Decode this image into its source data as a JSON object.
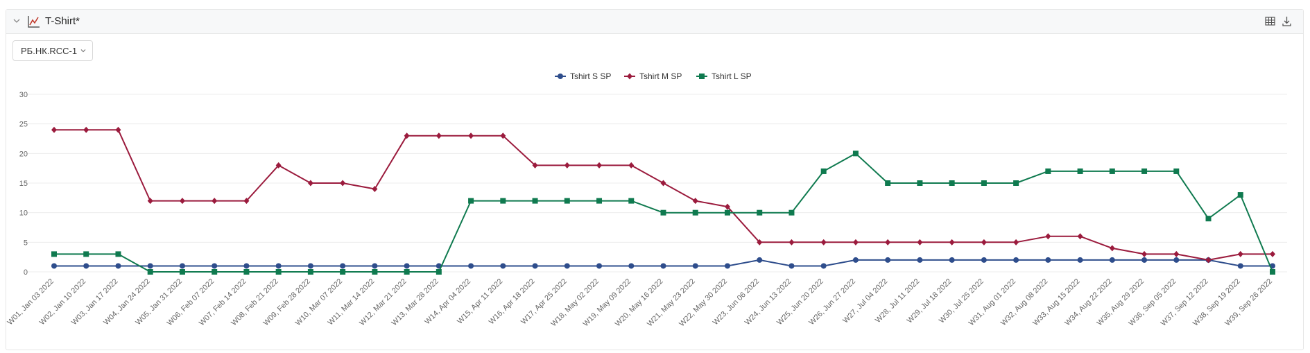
{
  "panel": {
    "title": "T-Shirt*"
  },
  "icons": {
    "collapse": "chevron-down-icon",
    "chart": "line-chart-icon",
    "table": "table-icon",
    "download": "download-icon"
  },
  "selector": {
    "value": "РБ.НК.RCC-1"
  },
  "colors": {
    "s": "#2e4d8c",
    "m": "#9b1b3d",
    "l": "#0f7a4f",
    "grid": "#ececec"
  },
  "chart_data": {
    "type": "line",
    "title": "",
    "xlabel": "",
    "ylabel": "",
    "ylim": [
      0,
      30
    ],
    "yticks": [
      "0",
      "5",
      "10",
      "15",
      "20",
      "25",
      "30"
    ],
    "legend_position": "top-center",
    "grid": true,
    "categories": [
      "W01, Jan 03 2022",
      "W02, Jan 10 2022",
      "W03, Jan 17 2022",
      "W04, Jan 24 2022",
      "W05, Jan 31 2022",
      "W06, Feb 07 2022",
      "W07, Feb 14 2022",
      "W08, Feb 21 2022",
      "W09, Feb 28 2022",
      "W10, Mar 07 2022",
      "W11, Mar 14 2022",
      "W12, Mar 21 2022",
      "W13, Mar 28 2022",
      "W14, Apr 04 2022",
      "W15, Apr 11 2022",
      "W16, Apr 18 2022",
      "W17, Apr 25 2022",
      "W18, May 02 2022",
      "W19, May 09 2022",
      "W20, May 16 2022",
      "W21, May 23 2022",
      "W22, May 30 2022",
      "W23, Jun 06 2022",
      "W24, Jun 13 2022",
      "W25, Jun 20 2022",
      "W26, Jun 27 2022",
      "W27, Jul 04 2022",
      "W28, Jul 11 2022",
      "W29, Jul 18 2022",
      "W30, Jul 25 2022",
      "W31, Aug 01 2022",
      "W32, Aug 08 2022",
      "W33, Aug 15 2022",
      "W34, Aug 22 2022",
      "W35, Aug 29 2022",
      "W36, Sep 05 2022",
      "W37, Sep 12 2022",
      "W38, Sep 19 2022",
      "W39, Sep 26 2022"
    ],
    "series": [
      {
        "name": "Tshirt S SP",
        "color": "#2e4d8c",
        "marker": "circle",
        "values": [
          1,
          1,
          1,
          1,
          1,
          1,
          1,
          1,
          1,
          1,
          1,
          1,
          1,
          1,
          1,
          1,
          1,
          1,
          1,
          1,
          1,
          1,
          2,
          1,
          1,
          2,
          2,
          2,
          2,
          2,
          2,
          2,
          2,
          2,
          2,
          2,
          2,
          1,
          1
        ]
      },
      {
        "name": "Tshirt M SP",
        "color": "#9b1b3d",
        "marker": "diamond",
        "values": [
          24,
          24,
          24,
          12,
          12,
          12,
          12,
          18,
          15,
          15,
          14,
          23,
          23,
          23,
          23,
          18,
          18,
          18,
          18,
          15,
          12,
          11,
          5,
          5,
          5,
          5,
          5,
          5,
          5,
          5,
          5,
          6,
          6,
          4,
          3,
          3,
          2,
          3,
          3
        ]
      },
      {
        "name": "Tshirt L SP",
        "color": "#0f7a4f",
        "marker": "square",
        "values": [
          3,
          3,
          3,
          0,
          0,
          0,
          0,
          0,
          0,
          0,
          0,
          0,
          0,
          12,
          12,
          12,
          12,
          12,
          12,
          10,
          10,
          10,
          10,
          10,
          17,
          20,
          15,
          15,
          15,
          15,
          15,
          17,
          17,
          17,
          17,
          17,
          9,
          13,
          0
        ]
      }
    ]
  }
}
